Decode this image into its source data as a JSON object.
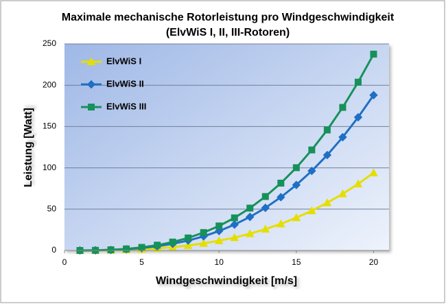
{
  "chart_data": {
    "type": "line",
    "title": "Maximale mechanische Rotorleistung pro Windgeschwindigkeit",
    "subtitle": "(ElvWiS I, II, III-Rotoren)",
    "x_label": "Windgeschwindigkeit [m/s]",
    "y_label": "Leistung  [Watt]",
    "x": [
      1,
      2,
      3,
      4,
      5,
      6,
      7,
      8,
      9,
      10,
      11,
      12,
      13,
      14,
      15,
      16,
      17,
      18,
      19,
      20
    ],
    "series": [
      {
        "name": "ElvWiS I",
        "color": "#e6de00",
        "marker": "triangle",
        "values": [
          0.01,
          0.09,
          0.3,
          0.8,
          1.5,
          2.5,
          4.0,
          6.0,
          8.6,
          11.8,
          15.6,
          20.3,
          25.8,
          32.2,
          39.7,
          48.1,
          57.7,
          68.5,
          80.6,
          94.0
        ]
      },
      {
        "name": "ElvWiS II",
        "color": "#1f6fc4",
        "marker": "diamond",
        "values": [
          0.02,
          0.2,
          0.6,
          1.5,
          2.9,
          5.1,
          8.1,
          12.0,
          17.1,
          23.5,
          31.3,
          40.6,
          51.6,
          64.5,
          79.3,
          96.3,
          115.5,
          137.1,
          161.2,
          188.0
        ]
      },
      {
        "name": "ElvWiS III",
        "color": "#16915a",
        "marker": "square",
        "values": [
          0.03,
          0.2,
          0.8,
          1.9,
          3.7,
          6.4,
          10.2,
          15.2,
          21.7,
          29.7,
          39.5,
          51.3,
          65.3,
          81.5,
          100.2,
          121.7,
          145.9,
          173.2,
          203.7,
          237.6
        ]
      }
    ],
    "xlim": [
      0,
      21
    ],
    "xticks": [
      0,
      5,
      10,
      15,
      20
    ],
    "ylim": [
      0,
      250
    ],
    "yticks": [
      0,
      50,
      100,
      150,
      200,
      250
    ],
    "grid": true,
    "legend": "top-left"
  }
}
